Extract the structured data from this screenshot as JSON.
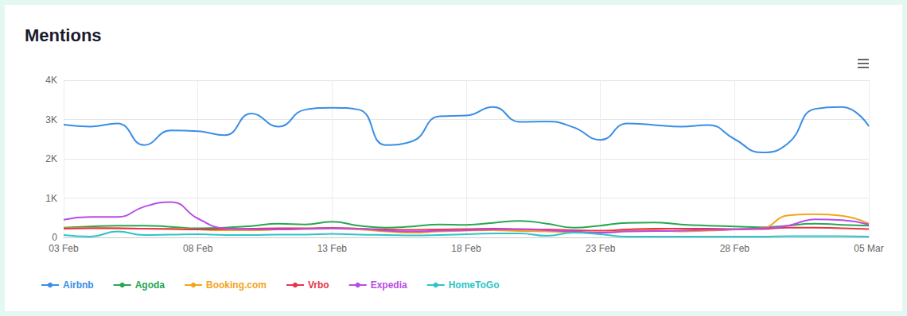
{
  "chart_data": {
    "type": "line",
    "title": "Mentions",
    "categories": [
      "03 Feb",
      null,
      null,
      null,
      null,
      "08 Feb",
      null,
      null,
      null,
      null,
      "13 Feb",
      null,
      null,
      null,
      null,
      "18 Feb",
      null,
      null,
      null,
      null,
      "23 Feb",
      null,
      null,
      null,
      null,
      "28 Feb",
      null,
      null,
      null,
      null,
      "05 Mar"
    ],
    "series": [
      {
        "name": "Airbnb",
        "color": "#3a8ee6",
        "values": [
          2870,
          2820,
          2900,
          2350,
          2720,
          2700,
          2600,
          3150,
          2820,
          3250,
          3300,
          3250,
          2350,
          2450,
          3080,
          3100,
          3320,
          2940,
          2950,
          2800,
          2480,
          2900,
          2860,
          2820,
          2860,
          2500,
          2160,
          2400,
          3270,
          3320,
          2830
        ]
      },
      {
        "name": "Agoda",
        "color": "#27a852",
        "values": [
          250,
          280,
          300,
          300,
          270,
          230,
          250,
          290,
          350,
          330,
          400,
          300,
          250,
          280,
          330,
          320,
          370,
          420,
          350,
          250,
          300,
          370,
          380,
          330,
          300,
          280,
          260,
          300,
          350,
          320,
          300
        ]
      },
      {
        "name": "Booking.com",
        "color": "#f4a41d",
        "values": [
          230,
          240,
          230,
          220,
          220,
          200,
          180,
          180,
          200,
          210,
          220,
          200,
          150,
          120,
          150,
          170,
          180,
          160,
          150,
          130,
          120,
          170,
          180,
          150,
          170,
          200,
          230,
          560,
          590,
          550,
          350
        ]
      },
      {
        "name": "Vrbo",
        "color": "#e8334a",
        "values": [
          220,
          230,
          230,
          220,
          210,
          200,
          210,
          220,
          230,
          230,
          240,
          220,
          200,
          190,
          200,
          210,
          220,
          210,
          200,
          180,
          170,
          200,
          220,
          220,
          220,
          210,
          210,
          250,
          250,
          230,
          210
        ]
      },
      {
        "name": "Expedia",
        "color": "#b84ce6",
        "values": [
          450,
          520,
          520,
          780,
          900,
          480,
          230,
          200,
          200,
          220,
          230,
          220,
          170,
          150,
          170,
          180,
          200,
          200,
          180,
          150,
          120,
          150,
          160,
          170,
          190,
          200,
          230,
          300,
          460,
          440,
          330
        ]
      },
      {
        "name": "HomeToGo",
        "color": "#2cc4c9",
        "values": [
          60,
          20,
          150,
          60,
          70,
          80,
          60,
          60,
          70,
          70,
          90,
          70,
          60,
          50,
          60,
          80,
          100,
          100,
          40,
          120,
          80,
          20,
          20,
          20,
          20,
          20,
          20,
          30,
          30,
          30,
          20
        ]
      }
    ],
    "ylim": [
      0,
      4000
    ],
    "yticks": [
      0,
      {
        "value": 1000,
        "label": "1K"
      },
      {
        "value": 2000,
        "label": "2K"
      },
      {
        "value": 3000,
        "label": "3K"
      },
      {
        "value": 4000,
        "label": "4K"
      }
    ],
    "grid": true,
    "legend": "bottom"
  }
}
